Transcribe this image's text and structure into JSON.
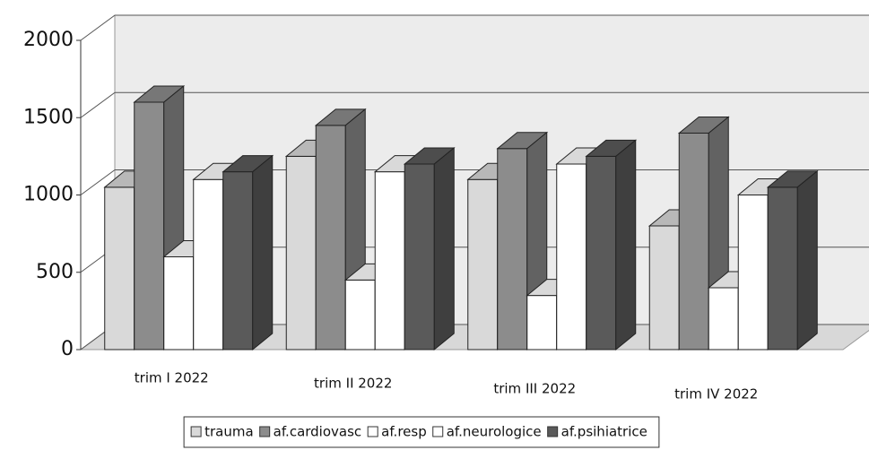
{
  "chart_data": {
    "type": "bar3d",
    "categories": [
      "trim I 2022",
      "trim II 2022",
      "trim III 2022",
      "trim IV 2022"
    ],
    "series": [
      {
        "name": "trauma",
        "color": "#d9d9d9",
        "values": [
          1050,
          1250,
          1100,
          800
        ]
      },
      {
        "name": "af.cardiovasc",
        "color": "#8c8c8c",
        "values": [
          1600,
          1450,
          1300,
          1400
        ]
      },
      {
        "name": "af.resp",
        "color": "#ffffff",
        "values": [
          600,
          450,
          350,
          400
        ]
      },
      {
        "name": "af.neurologice",
        "color": "#ffffff",
        "values": [
          1100,
          1150,
          1200,
          1000
        ]
      },
      {
        "name": "af.psihiatrice",
        "color": "#5a5a5a",
        "values": [
          1150,
          1200,
          1250,
          1050
        ]
      }
    ],
    "ylim": [
      0,
      2000
    ],
    "yticks": [
      0,
      500,
      1000,
      1500,
      2000
    ],
    "grid": true
  }
}
